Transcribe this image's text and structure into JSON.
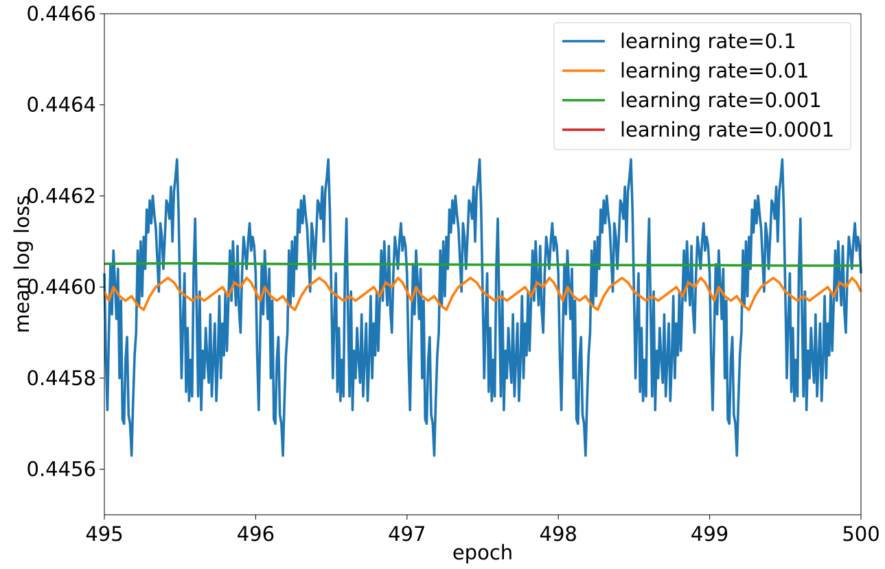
{
  "chart_data": {
    "type": "line",
    "title": "",
    "xlabel": "epoch",
    "ylabel": "mean log loss",
    "xlim": [
      495,
      500
    ],
    "ylim": [
      0.4455,
      0.4466
    ],
    "x_ticks": [
      495,
      496,
      497,
      498,
      499,
      500
    ],
    "x_tick_labels": [
      "495",
      "496",
      "497",
      "498",
      "499",
      "500"
    ],
    "y_ticks": [
      0.4456,
      0.4458,
      0.446,
      0.4462,
      0.4464,
      0.4466
    ],
    "y_tick_labels": [
      "0.4456",
      "0.4458",
      "0.4460",
      "0.4462",
      "0.4464",
      "0.4466"
    ],
    "grid": false,
    "legend_position": "top-right",
    "period_epochs": 1,
    "series": [
      {
        "name": "learning rate=0.1",
        "color": "#1f77b4",
        "cycle_phase": [
          0.0,
          0.01,
          0.02,
          0.03,
          0.04,
          0.05,
          0.06,
          0.07,
          0.08,
          0.09,
          0.1,
          0.11,
          0.12,
          0.13,
          0.14,
          0.15,
          0.16,
          0.17,
          0.18,
          0.19,
          0.2,
          0.21,
          0.22,
          0.23,
          0.24,
          0.25,
          0.26,
          0.27,
          0.28,
          0.29,
          0.3,
          0.31,
          0.32,
          0.33,
          0.34,
          0.35,
          0.36,
          0.37,
          0.38,
          0.39,
          0.4,
          0.41,
          0.42,
          0.43,
          0.44,
          0.45,
          0.46,
          0.47,
          0.48,
          0.49,
          0.5,
          0.51,
          0.52,
          0.53,
          0.54,
          0.55,
          0.56,
          0.57,
          0.58,
          0.59,
          0.6,
          0.61,
          0.62,
          0.63,
          0.64,
          0.65,
          0.66,
          0.67,
          0.68,
          0.69,
          0.7,
          0.71,
          0.72,
          0.73,
          0.74,
          0.75,
          0.76,
          0.77,
          0.78,
          0.79,
          0.8,
          0.81,
          0.82,
          0.83,
          0.84,
          0.85,
          0.86,
          0.87,
          0.88,
          0.89,
          0.9,
          0.91,
          0.92,
          0.93,
          0.94,
          0.95,
          0.96,
          0.97,
          0.98,
          0.99,
          1.0
        ],
        "cycle_values": [
          0.44603,
          0.44585,
          0.44573,
          0.4459,
          0.44605,
          0.44594,
          0.44608,
          0.44601,
          0.44593,
          0.44604,
          0.4458,
          0.44597,
          0.44571,
          0.4457,
          0.44584,
          0.44589,
          0.44572,
          0.4457,
          0.44563,
          0.44575,
          0.44585,
          0.4459,
          0.44608,
          0.44596,
          0.4461,
          0.44598,
          0.44611,
          0.44604,
          0.44617,
          0.44612,
          0.44619,
          0.44614,
          0.4462,
          0.44616,
          0.44613,
          0.44606,
          0.44599,
          0.44614,
          0.44611,
          0.44604,
          0.44611,
          0.44619,
          0.44618,
          0.44615,
          0.44622,
          0.4461,
          0.44621,
          0.44624,
          0.44628,
          0.44617,
          0.44599,
          0.4458,
          0.44593,
          0.44603,
          0.44577,
          0.44591,
          0.44575,
          0.44584,
          0.44576,
          0.44604,
          0.44615,
          0.44595,
          0.44576,
          0.44599,
          0.44573,
          0.44586,
          0.4458,
          0.44591,
          0.44584,
          0.44579,
          0.44594,
          0.44576,
          0.44584,
          0.44592,
          0.44575,
          0.44584,
          0.44598,
          0.4458,
          0.44592,
          0.44585,
          0.44599,
          0.44586,
          0.44597,
          0.44608,
          0.44597,
          0.4461,
          0.44602,
          0.44596,
          0.44609,
          0.44595,
          0.4459,
          0.44603,
          0.44611,
          0.44608,
          0.44604,
          0.4461,
          0.44614,
          0.44608,
          0.44611,
          0.44609,
          0.44603
        ]
      },
      {
        "name": "learning rate=0.01",
        "color": "#ff7f0e",
        "cycle_phase": [
          0.0,
          0.03,
          0.06,
          0.1,
          0.14,
          0.18,
          0.22,
          0.26,
          0.3,
          0.34,
          0.38,
          0.42,
          0.46,
          0.5,
          0.54,
          0.58,
          0.62,
          0.66,
          0.7,
          0.74,
          0.78,
          0.82,
          0.86,
          0.9,
          0.94,
          0.97,
          1.0
        ],
        "cycle_values": [
          0.44599,
          0.44597,
          0.446,
          0.44598,
          0.44597,
          0.44598,
          0.44596,
          0.44595,
          0.44598,
          0.446,
          0.44601,
          0.44602,
          0.44601,
          0.44599,
          0.44598,
          0.44597,
          0.44598,
          0.44597,
          0.44598,
          0.44599,
          0.446,
          0.44598,
          0.44601,
          0.446,
          0.44602,
          0.44601,
          0.44599
        ]
      },
      {
        "name": "learning rate=0.001",
        "color": "#2ca02c",
        "x": [
          495.0,
          495.5,
          496.0,
          496.5,
          497.0,
          497.5,
          498.0,
          498.5,
          499.0,
          499.5,
          500.0
        ],
        "values": [
          0.446051,
          0.446052,
          0.446051,
          0.44605,
          0.44605,
          0.446049,
          0.446049,
          0.446048,
          0.446048,
          0.446047,
          0.446047
        ]
      },
      {
        "name": "learning rate=0.0001",
        "color": "#d62728",
        "x": [],
        "values": []
      }
    ]
  }
}
